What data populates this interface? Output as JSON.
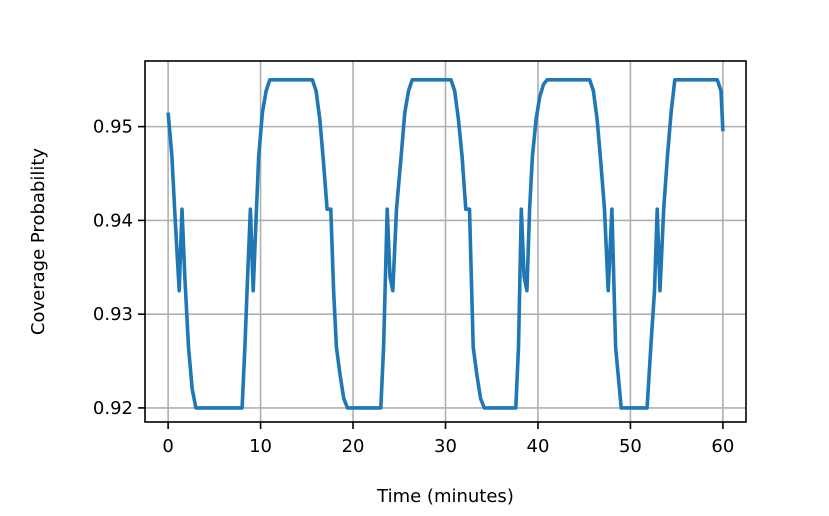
{
  "chart_data": {
    "type": "line",
    "title": "",
    "xlabel": "Time (minutes)",
    "ylabel": "Coverage Probability",
    "xlim": [
      -2.5,
      62.5
    ],
    "ylim": [
      0.9185,
      0.957
    ],
    "grid": true,
    "legend": "none",
    "x_ticks": [
      0,
      10,
      20,
      30,
      40,
      50,
      60
    ],
    "x_tick_labels": [
      "0",
      "10",
      "20",
      "30",
      "40",
      "50",
      "60"
    ],
    "y_ticks": [
      0.92,
      0.93,
      0.94,
      0.95
    ],
    "y_tick_labels": [
      "0.92",
      "0.93",
      "0.94",
      "0.95"
    ],
    "series": [
      {
        "color": "#1f77b4",
        "x": [
          0,
          0.4,
          0.8,
          1.2,
          1.5,
          1.8,
          2.2,
          2.6,
          3.0,
          5.0,
          8.0,
          8.3,
          8.6,
          8.9,
          9.2,
          9.5,
          9.8,
          10.2,
          10.6,
          11.0,
          11.4,
          12.0,
          14.0,
          15.6,
          16.0,
          16.4,
          16.8,
          17.2,
          17.6,
          17.9,
          18.2,
          18.6,
          19.0,
          19.4,
          19.8,
          21.0,
          23.0,
          23.3,
          23.7,
          24.0,
          24.3,
          24.7,
          25.2,
          25.6,
          26.0,
          26.4,
          27.0,
          29.0,
          30.6,
          31.0,
          31.4,
          31.8,
          32.2,
          32.6,
          33.0,
          33.4,
          33.8,
          34.2,
          36.0,
          37.6,
          37.9,
          38.2,
          38.5,
          38.8,
          39.1,
          39.4,
          39.8,
          40.2,
          40.6,
          41.0,
          42.0,
          44.0,
          45.6,
          46.0,
          46.4,
          46.8,
          47.2,
          47.6,
          48.0,
          48.4,
          49.0,
          51.0,
          51.8,
          52.2,
          52.6,
          52.9,
          53.2,
          53.6,
          54.0,
          54.4,
          54.8,
          56.0,
          58.0,
          59.4,
          59.8,
          60.0
        ],
        "y": [
          0.9515,
          0.947,
          0.9395,
          0.9325,
          0.9412,
          0.934,
          0.9265,
          0.922,
          0.92,
          0.92,
          0.92,
          0.9265,
          0.934,
          0.9412,
          0.9325,
          0.94,
          0.9468,
          0.9515,
          0.9538,
          0.955,
          0.955,
          0.955,
          0.955,
          0.955,
          0.9538,
          0.9508,
          0.9462,
          0.9412,
          0.9412,
          0.9325,
          0.9265,
          0.9235,
          0.921,
          0.92,
          0.92,
          0.92,
          0.92,
          0.9265,
          0.9412,
          0.934,
          0.9325,
          0.9412,
          0.9468,
          0.9515,
          0.9538,
          0.955,
          0.955,
          0.955,
          0.955,
          0.9538,
          0.9508,
          0.9468,
          0.9412,
          0.9412,
          0.9265,
          0.9235,
          0.921,
          0.92,
          0.92,
          0.92,
          0.9265,
          0.9412,
          0.934,
          0.9325,
          0.9412,
          0.9468,
          0.9508,
          0.9532,
          0.9545,
          0.955,
          0.955,
          0.955,
          0.955,
          0.9538,
          0.9508,
          0.9462,
          0.9412,
          0.9325,
          0.9412,
          0.9265,
          0.92,
          0.92,
          0.92,
          0.9265,
          0.9325,
          0.9412,
          0.9325,
          0.9412,
          0.9468,
          0.9515,
          0.955,
          0.955,
          0.955,
          0.955,
          0.9538,
          0.9495
        ]
      }
    ]
  }
}
